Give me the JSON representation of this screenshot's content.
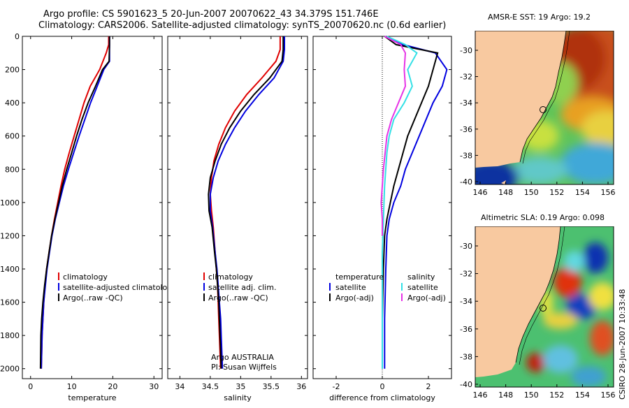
{
  "title": {
    "line1": "Argo profile: CS 5901623_5 20-Jun-2007 20070622_43 34.379S 151.746E",
    "line2": "Climatology: CARS2006. Satellite-adjusted climatology: synTS_20070620.nc (0.6d earlier)"
  },
  "credit": "CSIRO 28-Jun-2007 10:33:48",
  "colors": {
    "climatology": "#e00000",
    "satellite": "#0000e0",
    "argo": "#000000",
    "sal_satellite": "#33e0e6",
    "sal_argo": "#e633e6",
    "land": "#f8c9a0"
  },
  "chart_data": [
    {
      "type": "line",
      "id": "temperature",
      "xlabel": "temperature",
      "ylabel": "",
      "xlim": [
        -2,
        32
      ],
      "ylim": [
        2060,
        0
      ],
      "xticks": [
        0,
        10,
        20,
        30
      ],
      "yticks": [
        0,
        200,
        400,
        600,
        800,
        1000,
        1200,
        1400,
        1600,
        1800,
        2000
      ],
      "legend": [
        "climatology",
        "satellite-adjusted climatology",
        "Argo(..raw -QC)"
      ],
      "series": [
        {
          "name": "climatology",
          "color": "#e00000",
          "x": [
            19.0,
            19.0,
            18.4,
            16.8,
            14.5,
            13.0,
            11.8,
            10.6,
            9.4,
            8.3,
            7.4,
            6.6,
            5.8,
            5.1,
            4.5,
            3.9,
            3.5,
            3.2,
            3.0,
            2.8,
            2.6
          ],
          "y": [
            0,
            50,
            100,
            200,
            300,
            400,
            500,
            600,
            700,
            800,
            900,
            1000,
            1100,
            1200,
            1300,
            1400,
            1500,
            1600,
            1700,
            1800,
            2000
          ]
        },
        {
          "name": "satellite-adjusted climatology",
          "color": "#0000e0",
          "x": [
            19.2,
            19.2,
            19.2,
            17.8,
            16.2,
            14.6,
            13.2,
            11.8,
            10.5,
            9.2,
            8.0,
            7.0,
            6.0,
            5.2,
            4.6,
            4.0,
            3.6,
            3.2,
            3.0,
            2.8,
            2.6
          ],
          "y": [
            0,
            50,
            150,
            200,
            300,
            400,
            500,
            600,
            700,
            800,
            900,
            1000,
            1100,
            1200,
            1300,
            1400,
            1500,
            1600,
            1700,
            1800,
            2000
          ]
        },
        {
          "name": "Argo(..raw -QC)",
          "color": "#000000",
          "x": [
            19.2,
            19.2,
            19.1,
            17.5,
            15.8,
            14.0,
            12.5,
            11.2,
            10.0,
            8.8,
            7.7,
            6.8,
            5.9,
            5.1,
            4.5,
            3.9,
            3.4,
            3.0,
            2.7,
            2.5,
            2.4
          ],
          "y": [
            0,
            50,
            150,
            200,
            300,
            400,
            500,
            600,
            700,
            800,
            900,
            1000,
            1100,
            1200,
            1300,
            1400,
            1500,
            1600,
            1700,
            1800,
            2000
          ]
        }
      ]
    },
    {
      "type": "line",
      "id": "salinity",
      "xlabel": "salinity",
      "ylabel": "",
      "xlim": [
        33.8,
        36.1
      ],
      "ylim": [
        2060,
        0
      ],
      "xticks": [
        34,
        34.5,
        35,
        35.5,
        36
      ],
      "yticks": [
        0,
        200,
        400,
        600,
        800,
        1000,
        1200,
        1400,
        1600,
        1800,
        2000
      ],
      "legend": [
        "climatology",
        "satellite adj. clim.",
        "Argo(..raw -QC)"
      ],
      "annotations": [
        "Argo AUSTRALIA",
        "PI: Susan Wijffels"
      ],
      "series": [
        {
          "name": "climatology",
          "color": "#e00000",
          "x": [
            35.65,
            35.65,
            35.58,
            35.35,
            35.1,
            34.9,
            34.75,
            34.64,
            34.56,
            34.52,
            34.5,
            34.52,
            34.55,
            34.58,
            34.6,
            34.62,
            34.63,
            34.64,
            34.65,
            34.66,
            34.67
          ],
          "y": [
            0,
            80,
            150,
            250,
            350,
            450,
            550,
            650,
            750,
            850,
            950,
            1050,
            1150,
            1300,
            1400,
            1500,
            1600,
            1700,
            1800,
            1900,
            2000
          ]
        },
        {
          "name": "satellite adj. clim.",
          "color": "#0000e0",
          "x": [
            35.72,
            35.72,
            35.7,
            35.55,
            35.3,
            35.08,
            34.9,
            34.75,
            34.63,
            34.55,
            34.5,
            34.5,
            34.54,
            34.58,
            34.61,
            34.63,
            34.65,
            34.67,
            34.68,
            34.69,
            34.7
          ],
          "y": [
            0,
            80,
            150,
            250,
            350,
            450,
            550,
            650,
            750,
            850,
            950,
            1050,
            1150,
            1300,
            1400,
            1500,
            1600,
            1700,
            1800,
            1900,
            2000
          ]
        },
        {
          "name": "Argo(..raw -QC)",
          "color": "#000000",
          "x": [
            35.7,
            35.7,
            35.68,
            35.48,
            35.22,
            35.0,
            34.82,
            34.68,
            34.58,
            34.5,
            34.47,
            34.48,
            34.53,
            34.57,
            34.6,
            34.62,
            34.64,
            34.65,
            34.66,
            34.67,
            34.68
          ],
          "y": [
            0,
            80,
            150,
            250,
            350,
            450,
            550,
            650,
            750,
            850,
            950,
            1050,
            1150,
            1300,
            1400,
            1500,
            1600,
            1700,
            1800,
            1900,
            2000
          ]
        }
      ]
    },
    {
      "type": "line",
      "id": "difference",
      "xlabel": "difference from climatology",
      "ylabel": "",
      "xlim": [
        -3,
        3
      ],
      "ylim": [
        2060,
        0
      ],
      "xticks": [
        -2,
        0,
        2
      ],
      "yticks": [
        0,
        200,
        400,
        600,
        800,
        1000,
        1200,
        1400,
        1600,
        1800,
        2000
      ],
      "legend_groups": [
        {
          "heading": "temperature",
          "items": [
            "satellite",
            "Argo(-adj)"
          ]
        },
        {
          "heading": "salinity",
          "items": [
            "satellite",
            "Argo(-adj)"
          ]
        }
      ],
      "series": [
        {
          "name": "temperature satellite",
          "color": "#0000e0",
          "x": [
            0.1,
            0.9,
            2.3,
            2.8,
            2.6,
            2.2,
            1.9,
            1.6,
            1.3,
            1.0,
            0.8,
            0.5,
            0.3,
            0.2,
            0.15,
            0.1,
            0.1
          ],
          "y": [
            0,
            50,
            100,
            200,
            300,
            400,
            500,
            600,
            700,
            800,
            900,
            1000,
            1100,
            1200,
            1400,
            1700,
            2000
          ]
        },
        {
          "name": "temperature Argo(-adj)",
          "color": "#000000",
          "x": [
            0.1,
            0.6,
            2.4,
            2.2,
            2.0,
            1.7,
            1.4,
            1.1,
            0.9,
            0.7,
            0.5,
            0.35,
            0.2,
            0.1,
            0.05,
            0.0,
            0.0
          ],
          "y": [
            0,
            50,
            100,
            200,
            300,
            400,
            500,
            600,
            700,
            800,
            900,
            1000,
            1100,
            1200,
            1400,
            1700,
            2000
          ]
        },
        {
          "name": "salinity satellite",
          "color": "#33e0e6",
          "x": [
            0.2,
            1.0,
            1.5,
            1.1,
            1.3,
            0.95,
            0.5,
            0.3,
            0.2,
            0.1,
            0.05,
            0.0,
            0.0,
            0.0
          ],
          "y": [
            0,
            50,
            100,
            200,
            300,
            400,
            500,
            600,
            700,
            900,
            1100,
            1300,
            1600,
            2000
          ]
        },
        {
          "name": "salinity Argo(-adj)",
          "color": "#e633e6",
          "x": [
            0.1,
            0.8,
            1.0,
            0.95,
            1.0,
            0.7,
            0.4,
            0.2,
            0.05,
            -0.05,
            0.0,
            0.0
          ],
          "y": [
            0,
            50,
            100,
            200,
            300,
            400,
            500,
            600,
            800,
            1000,
            1100,
            1200
          ]
        }
      ]
    }
  ],
  "maps": [
    {
      "id": "sst",
      "title": "AMSR-E SST: 19 Argo: 19.2",
      "xticks": [
        "146",
        "148",
        "150",
        "152",
        "154",
        "156"
      ],
      "yticks": [
        "-30",
        "-32",
        "-34",
        "-36",
        "-38",
        "-40"
      ]
    },
    {
      "id": "sla",
      "title": "Altimetric SLA: 0.19 Argo: 0.098",
      "xticks": [
        "146",
        "148",
        "150",
        "152",
        "154",
        "156"
      ],
      "yticks": [
        "-30",
        "-32",
        "-34",
        "-36",
        "-38",
        "-40"
      ]
    }
  ]
}
